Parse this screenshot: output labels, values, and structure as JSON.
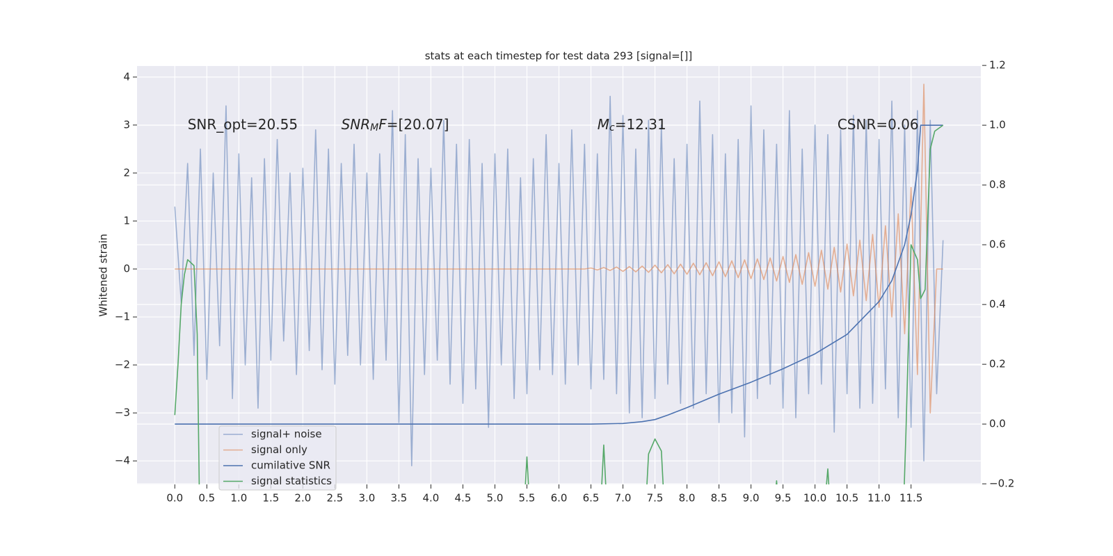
{
  "chart_data": {
    "type": "line",
    "title": "stats at each timestep for test data 293 [signal=[]]",
    "ylabel": "Whitened strain",
    "background": "#eaeaf2",
    "grid": true,
    "legend": "lower left",
    "xlim": [
      -0.59,
      12.59
    ],
    "ylim": [
      -4.49,
      4.23
    ],
    "y2lim": [
      -0.202,
      1.198
    ],
    "xticks": [
      {
        "value": 0,
        "label": "0.0"
      },
      0.5,
      {
        "value": 1,
        "label": "1.0"
      },
      1.5,
      {
        "value": 2,
        "label": "2.0"
      },
      2.5,
      {
        "value": 3,
        "label": "3.0"
      },
      3.5,
      {
        "value": 4,
        "label": "4.0"
      },
      4.5,
      {
        "value": 5,
        "label": "5.0"
      },
      5.5,
      {
        "value": 6,
        "label": "6.0"
      },
      6.5,
      {
        "value": 7,
        "label": "7.0"
      },
      7.5,
      {
        "value": 8,
        "label": "8.0"
      },
      8.5,
      {
        "value": 9,
        "label": "9.0"
      },
      9.5,
      {
        "value": 10,
        "label": "10.0"
      },
      10.5,
      {
        "value": 11,
        "label": "11.0"
      },
      11.5
    ],
    "yticks": [
      {
        "value": -4,
        "label": "−4"
      },
      {
        "value": -3,
        "label": "−3"
      },
      {
        "value": -2,
        "label": "−2"
      },
      {
        "value": -1,
        "label": "−1"
      },
      0,
      1,
      2,
      3,
      4
    ],
    "y2ticks": [
      {
        "value": -0.2,
        "label": "−0.2"
      },
      {
        "value": 0,
        "label": "0.0"
      },
      0.2,
      0.4,
      0.6,
      0.8,
      {
        "value": 1,
        "label": "1.0"
      },
      1.2
    ],
    "x": [
      0,
      0.1,
      0.2,
      0.3,
      0.4,
      0.5,
      0.6,
      0.7,
      0.8,
      0.9,
      1,
      1.1,
      1.2,
      1.3,
      1.4,
      1.5,
      1.6,
      1.7,
      1.8,
      1.9,
      2,
      2.1,
      2.2,
      2.3,
      2.4,
      2.5,
      2.6,
      2.7,
      2.8,
      2.9,
      3,
      3.1,
      3.2,
      3.3,
      3.4,
      3.5,
      3.6,
      3.7,
      3.8,
      3.9,
      4,
      4.1,
      4.2,
      4.3,
      4.4,
      4.5,
      4.6,
      4.7,
      4.8,
      4.9,
      5,
      5.1,
      5.2,
      5.3,
      5.4,
      5.5,
      5.6,
      5.7,
      5.8,
      5.9,
      6,
      6.1,
      6.2,
      6.3,
      6.4,
      6.5,
      6.6,
      6.7,
      6.8,
      6.9,
      7,
      7.1,
      7.2,
      7.3,
      7.4,
      7.5,
      7.6,
      7.7,
      7.8,
      7.9,
      8,
      8.1,
      8.2,
      8.3,
      8.4,
      8.5,
      8.6,
      8.7,
      8.8,
      8.9,
      9,
      9.1,
      9.2,
      9.3,
      9.4,
      9.5,
      9.6,
      9.7,
      9.8,
      9.9,
      10,
      10.1,
      10.2,
      10.3,
      10.4,
      10.5,
      10.6,
      10.7,
      10.8,
      10.9,
      11,
      11.1,
      11.2,
      11.3,
      11.4,
      11.5,
      11.6,
      11.7,
      11.8,
      11.9,
      12
    ],
    "series": [
      {
        "name": "signal+ noise",
        "color": "#4c72b0",
        "opacity": 0.5,
        "values": [
          1.3,
          -0.7,
          2.2,
          -1.8,
          2.5,
          -2.3,
          2.0,
          -1.6,
          3.4,
          -2.7,
          2.4,
          -2.0,
          1.9,
          -2.9,
          2.3,
          -1.9,
          2.7,
          -1.5,
          2.0,
          -2.2,
          2.1,
          -1.7,
          2.9,
          -2.1,
          2.5,
          -2.4,
          2.2,
          -1.8,
          2.6,
          -2.0,
          2.0,
          -2.3,
          2.4,
          -1.9,
          3.3,
          -3.2,
          2.8,
          -4.1,
          2.3,
          -2.2,
          2.1,
          -1.9,
          3.1,
          -2.4,
          2.6,
          -2.8,
          2.7,
          -2.5,
          2.2,
          -3.3,
          2.4,
          -2.0,
          2.5,
          -2.7,
          1.9,
          -2.6,
          2.3,
          -2.1,
          2.8,
          -2.2,
          2.2,
          -2.4,
          2.9,
          -2.0,
          2.6,
          -2.5,
          2.4,
          -2.3,
          3.6,
          -2.6,
          3.2,
          -3.0,
          2.5,
          -3.1,
          3.1,
          -2.7,
          3.0,
          -2.4,
          2.3,
          -2.8,
          2.6,
          -2.9,
          3.5,
          -2.6,
          2.8,
          -3.2,
          2.4,
          -3.0,
          2.7,
          -3.5,
          3.4,
          -2.7,
          2.9,
          -2.4,
          2.6,
          -2.9,
          3.3,
          -3.1,
          2.5,
          -2.6,
          3.0,
          -2.4,
          2.8,
          -3.4,
          2.9,
          -2.6,
          3.2,
          -2.9,
          3.1,
          -2.8,
          2.7,
          -2.5,
          3.5,
          -3.1,
          3.0,
          -3.3,
          3.3,
          -4.0,
          3.1,
          -2.6,
          0.6
        ]
      },
      {
        "name": "signal only",
        "color": "#dd8452",
        "opacity": 0.6,
        "values": [
          0,
          0,
          0,
          0,
          0,
          0,
          0,
          0,
          0,
          0,
          0,
          0,
          0,
          0,
          0,
          0,
          0,
          0,
          0,
          0,
          0,
          0,
          0,
          0,
          0,
          0,
          0,
          0,
          0,
          0,
          0,
          0,
          0,
          0,
          0,
          0,
          0,
          0,
          0,
          0,
          0,
          0,
          0,
          0,
          0,
          0,
          0,
          0,
          0,
          0,
          0,
          0,
          0,
          0,
          0,
          0,
          0,
          0,
          0,
          0,
          0,
          0,
          0,
          0,
          0,
          0.02,
          -0.02,
          0.03,
          -0.03,
          0.04,
          -0.05,
          0.05,
          -0.06,
          0.06,
          -0.07,
          0.08,
          -0.08,
          0.09,
          -0.1,
          0.1,
          -0.11,
          0.12,
          -0.12,
          0.13,
          -0.14,
          0.15,
          -0.16,
          0.17,
          -0.18,
          0.19,
          -0.2,
          0.21,
          -0.22,
          0.23,
          -0.25,
          0.26,
          -0.28,
          0.3,
          -0.32,
          0.34,
          -0.36,
          0.39,
          -0.42,
          0.45,
          -0.48,
          0.52,
          -0.56,
          0.6,
          -0.66,
          0.72,
          -0.8,
          0.9,
          -1.0,
          1.15,
          -1.35,
          1.7,
          -2.2,
          3.85,
          -3.0,
          0,
          0
        ]
      },
      {
        "name": "cumilative SNR",
        "color": "#4c72b0",
        "opacity": 1,
        "axis": "y2",
        "x": [
          0,
          6.5,
          7.0,
          7.3,
          7.5,
          7.7,
          8.0,
          8.5,
          9.0,
          9.5,
          10.0,
          10.5,
          11.0,
          11.2,
          11.4,
          11.5,
          11.6,
          11.65,
          12.0
        ],
        "values": [
          0,
          0,
          0.002,
          0.008,
          0.015,
          0.03,
          0.055,
          0.1,
          0.14,
          0.185,
          0.235,
          0.3,
          0.41,
          0.48,
          0.6,
          0.7,
          0.85,
          1.0,
          1.0
        ]
      },
      {
        "name": "signal statistics",
        "color": "#55a868",
        "opacity": 1,
        "axis": "y2",
        "x": [
          0,
          0.05,
          0.1,
          0.15,
          0.2,
          0.3,
          0.35,
          0.4,
          5.4,
          5.5,
          5.6,
          6.6,
          6.7,
          6.8,
          7.3,
          7.4,
          7.5,
          7.6,
          7.7,
          9.35,
          9.4,
          9.5,
          10.1,
          10.2,
          10.3,
          11.35,
          11.42,
          11.5,
          11.6,
          11.65,
          11.72,
          11.8,
          11.87,
          12.0
        ],
        "values": [
          0.03,
          0.2,
          0.4,
          0.5,
          0.55,
          0.53,
          0.3,
          -0.5,
          -0.5,
          -0.11,
          -0.5,
          -0.5,
          -0.07,
          -0.5,
          -0.5,
          -0.1,
          -0.05,
          -0.09,
          -0.5,
          -0.3,
          -0.19,
          -0.5,
          -0.4,
          -0.15,
          -0.5,
          -0.5,
          -0.03,
          0.6,
          0.55,
          0.42,
          0.45,
          0.92,
          0.98,
          1.0
        ]
      }
    ],
    "annotations": [
      {
        "x": 0.2,
        "y": 3,
        "parts": [
          {
            "text": "SNR_opt=20.55"
          }
        ]
      },
      {
        "x": 2.6,
        "y": 3,
        "parts": [
          {
            "text": "SNR",
            "style": "italic"
          },
          {
            "text": "M",
            "style": "sub"
          },
          {
            "text": "F",
            "style": "italic"
          },
          {
            "text": "=[20.07]"
          }
        ]
      },
      {
        "x": 6.6,
        "y": 3,
        "parts": [
          {
            "text": "M",
            "style": "italic"
          },
          {
            "text": "c",
            "style": "sub"
          },
          {
            "text": "=12.31"
          }
        ]
      },
      {
        "x": 10.35,
        "y": 3,
        "parts": [
          {
            "text": "CSNR=0.06"
          }
        ]
      }
    ]
  }
}
